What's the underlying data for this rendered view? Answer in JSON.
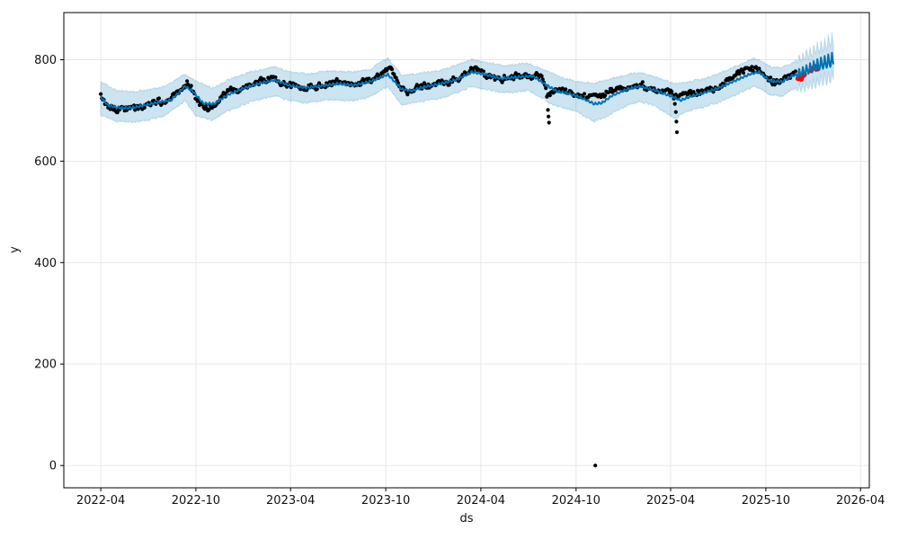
{
  "axes": {
    "xlabel": "ds",
    "ylabel": "y",
    "x_range": [
      "2022-01-20",
      "2026-04-18"
    ],
    "y_range": [
      -44,
      893
    ],
    "x_ticks": [
      {
        "label": "2022-04",
        "date": "2022-04-01"
      },
      {
        "label": "2022-10",
        "date": "2022-10-01"
      },
      {
        "label": "2023-04",
        "date": "2023-04-01"
      },
      {
        "label": "2023-10",
        "date": "2023-10-01"
      },
      {
        "label": "2024-04",
        "date": "2024-04-01"
      },
      {
        "label": "2024-10",
        "date": "2024-10-01"
      },
      {
        "label": "2025-04",
        "date": "2025-04-01"
      },
      {
        "label": "2025-10",
        "date": "2025-10-01"
      },
      {
        "label": "2026-04",
        "date": "2026-04-01"
      }
    ],
    "y_ticks": [
      0,
      200,
      400,
      600,
      800
    ],
    "grid_color": "#e6e6e6",
    "spine_color": "#000000"
  },
  "chart_data": {
    "type": "line",
    "title": "",
    "xlabel": "ds",
    "ylabel": "y",
    "legend": "none",
    "grid": "on",
    "colors": {
      "forecast_line": "#0072B2",
      "uncertainty_band": "rgba(0,114,178,0.2)",
      "actual_points": "#000000",
      "anomaly_points": "#ff0000"
    },
    "history": {
      "start": "2022-04-01",
      "end": "2025-11-28",
      "point_step_days": 2,
      "scatter_jitter": 7
    },
    "forecast": {
      "start": "2025-11-28",
      "end": "2026-02-08",
      "weekly_amplitude": 15
    },
    "weekly_amplitude_history": 2.2,
    "band_fringe": 3,
    "yhat_keypoints": [
      [
        "2022-04-01",
        727
      ],
      [
        "2022-04-15",
        710
      ],
      [
        "2022-05-10",
        705
      ],
      [
        "2022-06-05",
        706
      ],
      [
        "2022-07-01",
        712
      ],
      [
        "2022-07-25",
        717
      ],
      [
        "2022-08-15",
        721
      ],
      [
        "2022-09-10",
        748
      ],
      [
        "2022-09-25",
        738
      ],
      [
        "2022-10-15",
        714
      ],
      [
        "2022-11-05",
        713
      ],
      [
        "2022-12-01",
        731
      ],
      [
        "2023-01-01",
        744
      ],
      [
        "2023-02-01",
        754
      ],
      [
        "2023-03-01",
        760
      ],
      [
        "2023-04-01",
        749
      ],
      [
        "2023-05-01",
        745
      ],
      [
        "2023-06-01",
        749
      ],
      [
        "2023-07-01",
        753
      ],
      [
        "2023-08-01",
        750
      ],
      [
        "2023-09-01",
        757
      ],
      [
        "2023-10-05",
        771
      ],
      [
        "2023-11-01",
        742
      ],
      [
        "2023-11-20",
        739
      ],
      [
        "2023-12-15",
        747
      ],
      [
        "2024-01-15",
        753
      ],
      [
        "2024-02-15",
        761
      ],
      [
        "2024-03-15",
        776
      ],
      [
        "2024-04-10",
        771
      ],
      [
        "2024-05-10",
        763
      ],
      [
        "2024-06-10",
        766
      ],
      [
        "2024-07-10",
        768
      ],
      [
        "2024-08-05",
        750
      ],
      [
        "2024-08-25",
        738
      ],
      [
        "2024-09-15",
        734
      ],
      [
        "2024-10-10",
        726
      ],
      [
        "2024-11-05",
        713
      ],
      [
        "2024-11-20",
        715
      ],
      [
        "2024-12-10",
        730
      ],
      [
        "2025-01-10",
        743
      ],
      [
        "2025-02-01",
        748
      ],
      [
        "2025-03-01",
        740
      ],
      [
        "2025-04-08",
        726
      ],
      [
        "2025-04-20",
        720
      ],
      [
        "2025-05-10",
        728
      ],
      [
        "2025-06-01",
        734
      ],
      [
        "2025-07-01",
        744
      ],
      [
        "2025-08-01",
        758
      ],
      [
        "2025-09-01",
        772
      ],
      [
        "2025-09-18",
        776
      ],
      [
        "2025-10-10",
        758
      ],
      [
        "2025-11-01",
        757
      ],
      [
        "2025-11-20",
        768
      ],
      [
        "2025-11-28",
        771
      ],
      [
        "2025-12-15",
        778
      ],
      [
        "2026-01-10",
        790
      ],
      [
        "2026-02-08",
        800
      ]
    ],
    "actual_keypoints": [
      [
        "2022-04-01",
        731
      ],
      [
        "2022-04-08",
        718
      ],
      [
        "2022-04-18",
        706
      ],
      [
        "2022-05-01",
        704
      ],
      [
        "2022-05-15",
        702
      ],
      [
        "2022-06-01",
        708
      ],
      [
        "2022-06-10",
        703
      ],
      [
        "2022-06-20",
        710
      ],
      [
        "2022-07-05",
        714
      ],
      [
        "2022-07-20",
        719
      ],
      [
        "2022-08-01",
        713
      ],
      [
        "2022-08-15",
        722
      ],
      [
        "2022-08-28",
        734
      ],
      [
        "2022-09-08",
        752
      ],
      [
        "2022-09-15",
        755
      ],
      [
        "2022-09-22",
        744
      ],
      [
        "2022-10-01",
        724
      ],
      [
        "2022-10-12",
        712
      ],
      [
        "2022-10-25",
        708
      ],
      [
        "2022-11-08",
        714
      ],
      [
        "2022-11-20",
        726
      ],
      [
        "2022-12-05",
        737
      ],
      [
        "2022-12-20",
        741
      ],
      [
        "2023-01-05",
        748
      ],
      [
        "2023-01-20",
        756
      ],
      [
        "2023-02-05",
        759
      ],
      [
        "2023-02-20",
        763
      ],
      [
        "2023-03-05",
        762
      ],
      [
        "2023-03-20",
        756
      ],
      [
        "2023-04-05",
        748
      ],
      [
        "2023-04-20",
        744
      ],
      [
        "2023-05-05",
        749
      ],
      [
        "2023-05-18",
        743
      ],
      [
        "2023-06-01",
        750
      ],
      [
        "2023-06-15",
        753
      ],
      [
        "2023-07-01",
        756
      ],
      [
        "2023-07-15",
        752
      ],
      [
        "2023-08-01",
        750
      ],
      [
        "2023-08-18",
        756
      ],
      [
        "2023-09-05",
        761
      ],
      [
        "2023-09-20",
        768
      ],
      [
        "2023-10-01",
        781
      ],
      [
        "2023-10-08",
        787
      ],
      [
        "2023-10-16",
        772
      ],
      [
        "2023-10-25",
        752
      ],
      [
        "2023-11-05",
        740
      ],
      [
        "2023-11-15",
        737
      ],
      [
        "2023-12-01",
        744
      ],
      [
        "2023-12-15",
        749
      ],
      [
        "2024-01-01",
        752
      ],
      [
        "2024-01-15",
        755
      ],
      [
        "2024-02-01",
        757
      ],
      [
        "2024-02-15",
        763
      ],
      [
        "2024-03-01",
        770
      ],
      [
        "2024-03-12",
        780
      ],
      [
        "2024-03-20",
        783
      ],
      [
        "2024-04-01",
        777
      ],
      [
        "2024-04-15",
        768
      ],
      [
        "2024-05-01",
        764
      ],
      [
        "2024-05-15",
        762
      ],
      [
        "2024-06-01",
        766
      ],
      [
        "2024-06-15",
        769
      ],
      [
        "2024-07-01",
        771
      ],
      [
        "2024-07-15",
        768
      ],
      [
        "2024-07-28",
        764
      ],
      [
        "2024-08-03",
        748
      ],
      [
        "2024-08-07",
        726
      ],
      [
        "2024-08-12",
        733
      ],
      [
        "2024-08-20",
        736
      ],
      [
        "2024-09-01",
        739
      ],
      [
        "2024-09-15",
        735
      ],
      [
        "2024-10-01",
        731
      ],
      [
        "2024-10-15",
        726
      ],
      [
        "2024-11-01",
        729
      ],
      [
        "2024-11-15",
        732
      ],
      [
        "2024-12-01",
        736
      ],
      [
        "2024-12-15",
        739
      ],
      [
        "2025-01-01",
        743
      ],
      [
        "2025-01-15",
        748
      ],
      [
        "2025-02-01",
        750
      ],
      [
        "2025-02-15",
        746
      ],
      [
        "2025-03-01",
        741
      ],
      [
        "2025-03-15",
        738
      ],
      [
        "2025-04-01",
        736
      ],
      [
        "2025-04-08",
        726
      ],
      [
        "2025-04-14",
        729
      ],
      [
        "2025-04-22",
        731
      ],
      [
        "2025-05-05",
        733
      ],
      [
        "2025-05-20",
        736
      ],
      [
        "2025-06-05",
        739
      ],
      [
        "2025-06-20",
        743
      ],
      [
        "2025-07-05",
        750
      ],
      [
        "2025-07-20",
        760
      ],
      [
        "2025-08-01",
        768
      ],
      [
        "2025-08-15",
        776
      ],
      [
        "2025-09-01",
        781
      ],
      [
        "2025-09-12",
        784
      ],
      [
        "2025-09-22",
        776
      ],
      [
        "2025-10-05",
        762
      ],
      [
        "2025-10-18",
        754
      ],
      [
        "2025-11-01",
        760
      ],
      [
        "2025-11-12",
        768
      ],
      [
        "2025-11-20",
        772
      ],
      [
        "2025-11-28",
        774
      ]
    ],
    "band_upper_keypoints": [
      [
        "2022-04-01",
        757
      ],
      [
        "2022-05-01",
        740
      ],
      [
        "2022-06-01",
        737
      ],
      [
        "2022-07-01",
        741
      ],
      [
        "2022-08-01",
        747
      ],
      [
        "2022-09-10",
        772
      ],
      [
        "2022-10-01",
        758
      ],
      [
        "2022-11-01",
        744
      ],
      [
        "2022-12-01",
        760
      ],
      [
        "2023-01-15",
        777
      ],
      [
        "2023-03-01",
        786
      ],
      [
        "2023-04-01",
        776
      ],
      [
        "2023-05-01",
        772
      ],
      [
        "2023-06-15",
        778
      ],
      [
        "2023-08-01",
        776
      ],
      [
        "2023-09-01",
        782
      ],
      [
        "2023-10-05",
        804
      ],
      [
        "2023-11-01",
        769
      ],
      [
        "2023-12-01",
        773
      ],
      [
        "2024-01-15",
        779
      ],
      [
        "2024-03-15",
        801
      ],
      [
        "2024-04-15",
        794
      ],
      [
        "2024-05-15",
        789
      ],
      [
        "2024-07-01",
        793
      ],
      [
        "2024-08-10",
        776
      ],
      [
        "2024-09-01",
        766
      ],
      [
        "2024-10-01",
        758
      ],
      [
        "2024-11-05",
        754
      ],
      [
        "2024-12-01",
        761
      ],
      [
        "2025-01-10",
        772
      ],
      [
        "2025-02-01",
        775
      ],
      [
        "2025-03-01",
        767
      ],
      [
        "2025-04-10",
        752
      ],
      [
        "2025-05-01",
        756
      ],
      [
        "2025-06-01",
        762
      ],
      [
        "2025-07-01",
        772
      ],
      [
        "2025-08-01",
        786
      ],
      [
        "2025-09-10",
        803
      ],
      [
        "2025-10-10",
        787
      ],
      [
        "2025-11-01",
        784
      ],
      [
        "2025-11-20",
        793
      ],
      [
        "2025-12-20",
        812
      ],
      [
        "2026-01-15",
        826
      ],
      [
        "2026-02-08",
        840
      ]
    ],
    "band_lower_keypoints": [
      [
        "2022-04-01",
        691
      ],
      [
        "2022-05-01",
        679
      ],
      [
        "2022-06-01",
        676
      ],
      [
        "2022-07-01",
        681
      ],
      [
        "2022-08-01",
        689
      ],
      [
        "2022-09-10",
        719
      ],
      [
        "2022-10-01",
        690
      ],
      [
        "2022-11-01",
        681
      ],
      [
        "2022-12-01",
        699
      ],
      [
        "2023-01-15",
        717
      ],
      [
        "2023-03-01",
        729
      ],
      [
        "2023-04-01",
        719
      ],
      [
        "2023-05-01",
        715
      ],
      [
        "2023-06-15",
        721
      ],
      [
        "2023-08-01",
        719
      ],
      [
        "2023-09-01",
        727
      ],
      [
        "2023-10-05",
        747
      ],
      [
        "2023-11-01",
        711
      ],
      [
        "2023-12-01",
        717
      ],
      [
        "2024-01-15",
        724
      ],
      [
        "2024-03-15",
        747
      ],
      [
        "2024-04-15",
        741
      ],
      [
        "2024-05-15",
        735
      ],
      [
        "2024-07-01",
        739
      ],
      [
        "2024-08-10",
        716
      ],
      [
        "2024-09-01",
        706
      ],
      [
        "2024-10-01",
        698
      ],
      [
        "2024-11-05",
        678
      ],
      [
        "2024-12-01",
        689
      ],
      [
        "2025-01-10",
        712
      ],
      [
        "2025-02-01",
        717
      ],
      [
        "2025-03-01",
        709
      ],
      [
        "2025-04-10",
        684
      ],
      [
        "2025-05-01",
        698
      ],
      [
        "2025-06-01",
        706
      ],
      [
        "2025-07-01",
        716
      ],
      [
        "2025-08-01",
        729
      ],
      [
        "2025-09-10",
        748
      ],
      [
        "2025-10-10",
        731
      ],
      [
        "2025-11-01",
        728
      ],
      [
        "2025-11-20",
        741
      ],
      [
        "2025-12-20",
        748
      ],
      [
        "2026-01-15",
        758
      ],
      [
        "2026-02-08",
        768
      ]
    ],
    "outlier_points": [
      [
        "2024-08-08",
        701
      ],
      [
        "2024-08-09",
        688
      ],
      [
        "2024-08-10",
        676
      ],
      [
        "2024-11-07",
        0
      ],
      [
        "2025-04-09",
        713
      ],
      [
        "2025-04-11",
        697
      ],
      [
        "2025-04-12",
        678
      ],
      [
        "2025-04-13",
        657
      ]
    ],
    "anomaly_points": [
      [
        "2025-12-02",
        763
      ],
      [
        "2025-12-05",
        766
      ],
      [
        "2025-12-08",
        762
      ],
      [
        "2025-12-11",
        768
      ],
      [
        "2025-12-14",
        771
      ],
      [
        "2025-12-27",
        779
      ],
      [
        "2025-12-31",
        783
      ],
      [
        "2026-01-04",
        786
      ],
      [
        "2026-01-08",
        782
      ]
    ]
  }
}
